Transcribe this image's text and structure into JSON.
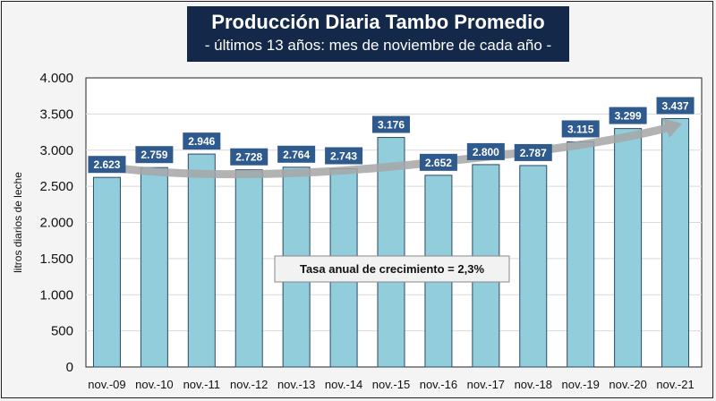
{
  "chart_data": {
    "type": "bar",
    "title": "Producción Diaria Tambo Promedio",
    "subtitle": "- últimos 13 años: mes de noviembre de cada año -",
    "ylabel": "litros diarios de leche",
    "xlabel": "",
    "ylim": [
      0,
      4000
    ],
    "yticks": [
      0,
      500,
      1000,
      1500,
      2000,
      2500,
      3000,
      3500,
      4000
    ],
    "ytick_labels": [
      "0",
      "500",
      "1.000",
      "1.500",
      "2.000",
      "2.500",
      "3.000",
      "3.500",
      "4.000"
    ],
    "categories": [
      "nov.-09",
      "nov.-10",
      "nov.-11",
      "nov.-12",
      "nov.-13",
      "nov.-14",
      "nov.-15",
      "nov.-16",
      "nov.-17",
      "nov.-18",
      "nov.-19",
      "nov.-20",
      "nov.-21"
    ],
    "values": [
      2623,
      2759,
      2946,
      2728,
      2764,
      2743,
      3176,
      2652,
      2800,
      2787,
      3115,
      3299,
      3437
    ],
    "data_labels": [
      "2.623",
      "2.759",
      "2.946",
      "2.728",
      "2.764",
      "2.743",
      "3.176",
      "2.652",
      "2.800",
      "2.787",
      "3.115",
      "3.299",
      "3.437"
    ],
    "annotation": "Tasa anual de crecimiento = 2,3%",
    "grid": true,
    "colors": {
      "bar": "#92cddc",
      "bar_edge": "#2c4a66",
      "label_bg": "#2f5a8e",
      "trend": "#a6a6a6",
      "title_bg": "#14284a"
    }
  }
}
